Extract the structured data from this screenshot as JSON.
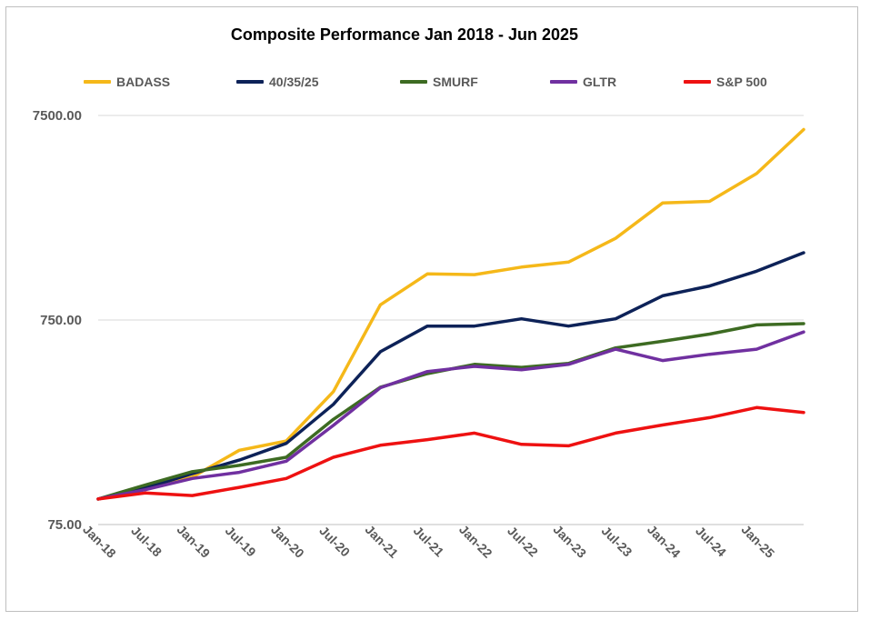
{
  "chart_data": {
    "type": "line",
    "title": "Composite Performance Jan 2018 - Jun 2025",
    "xlabel": "",
    "ylabel": "",
    "y_scale": "log",
    "ylim": [
      75,
      7500
    ],
    "y_ticks": [
      "75.00",
      "750.00",
      "7500.00"
    ],
    "y_tick_values": [
      75,
      750,
      7500
    ],
    "x": [
      "Jan-18",
      "Jul-18",
      "Jan-19",
      "Jul-19",
      "Jan-20",
      "Jul-20",
      "Jan-21",
      "Jul-21",
      "Jan-22",
      "Jul-22",
      "Jan-23",
      "Jul-23",
      "Jan-24",
      "Jul-24",
      "Jan-25",
      "Jun-25"
    ],
    "x_tick_labels": [
      "Jan-18",
      "Jul-18",
      "Jan-19",
      "Jul-19",
      "Jan-20",
      "Jul-20",
      "Jan-21",
      "Jul-21",
      "Jan-22",
      "Jul-22",
      "Jan-23",
      "Jul-23",
      "Jan-24",
      "Jul-24",
      "Jan-25"
    ],
    "grid": true,
    "legend_position": "top",
    "series": [
      {
        "name": "BADASS",
        "color": "#f5b819",
        "values": [
          100,
          114,
          128,
          173,
          192,
          335,
          890,
          1260,
          1250,
          1360,
          1440,
          1880,
          2800,
          2850,
          3900,
          6400
        ]
      },
      {
        "name": "40/35/25",
        "color": "#0d2258",
        "values": [
          100,
          113,
          133,
          155,
          187,
          290,
          525,
          700,
          700,
          760,
          700,
          760,
          985,
          1100,
          1300,
          1600
        ]
      },
      {
        "name": "SMURF",
        "color": "#3d6b22",
        "values": [
          100,
          117,
          136,
          146,
          160,
          245,
          352,
          410,
          455,
          440,
          460,
          548,
          590,
          640,
          710,
          720
        ]
      },
      {
        "name": "GLTR",
        "color": "#7030a0",
        "values": [
          100,
          111,
          126,
          135,
          153,
          229,
          350,
          420,
          445,
          428,
          455,
          540,
          475,
          510,
          540,
          655
        ]
      },
      {
        "name": "S&P 500",
        "color": "#ee1111",
        "values": [
          100,
          107,
          104,
          114,
          126,
          160,
          183,
          195,
          210,
          185,
          182,
          210,
          230,
          250,
          280,
          265
        ]
      }
    ]
  }
}
